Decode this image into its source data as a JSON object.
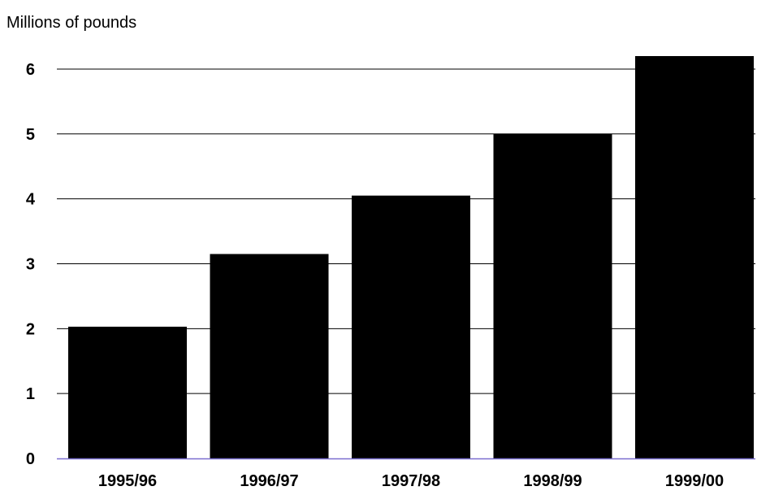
{
  "chart_data": {
    "type": "bar",
    "ylabel": "Millions of pounds",
    "categories": [
      "1995/96",
      "1996/97",
      "1997/98",
      "1998/99",
      "1999/00"
    ],
    "values": [
      2.03,
      3.15,
      4.05,
      5.0,
      6.2
    ],
    "ylim": [
      0,
      6.2
    ],
    "yticks": [
      0,
      1,
      2,
      3,
      4,
      5,
      6
    ],
    "grid": true,
    "colors": {
      "bar": "#000000",
      "grid": "#000000",
      "baseline": "#7b6fd0"
    }
  }
}
